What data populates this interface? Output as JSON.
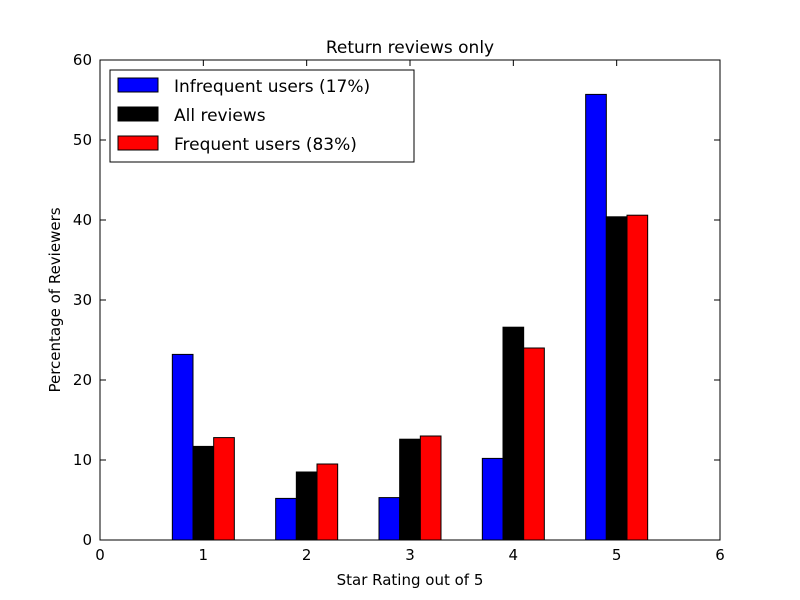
{
  "chart_data": {
    "type": "bar",
    "title": "Return reviews only",
    "xlabel": "Star Rating out of 5",
    "ylabel": "Percentage of Reviewers",
    "xlim": [
      0,
      6
    ],
    "ylim": [
      0,
      60
    ],
    "xticks": [
      "0",
      "1",
      "2",
      "3",
      "4",
      "5",
      "6"
    ],
    "yticks": [
      "0",
      "10",
      "20",
      "30",
      "40",
      "50",
      "60"
    ],
    "categories": [
      1,
      2,
      3,
      4,
      5
    ],
    "bar_width": 0.2,
    "grid": false,
    "legend_position": "top-left",
    "series": [
      {
        "name": "Infrequent users (17%)",
        "color": "#0000ff",
        "values": [
          23.2,
          5.2,
          5.3,
          10.2,
          55.7
        ]
      },
      {
        "name": "All reviews",
        "color": "#000000",
        "values": [
          11.7,
          8.5,
          12.6,
          26.6,
          40.4
        ]
      },
      {
        "name": "Frequent users (83%)",
        "color": "#ff0000",
        "values": [
          12.8,
          9.5,
          13.0,
          24.0,
          40.6
        ]
      }
    ]
  }
}
